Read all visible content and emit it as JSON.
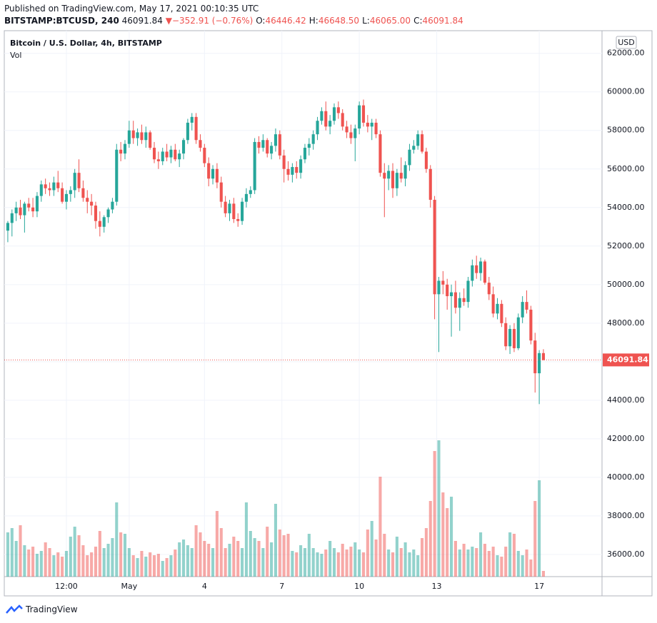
{
  "header": {
    "published": "Published on TradingView.com, May 17, 2021 00:10:35 UTC",
    "symbol": "BITSTAMP:BTCUSD, 240",
    "price": "46091.84",
    "change": "−352.91 (−0.76%)",
    "ohlc": [
      {
        "label": "O:",
        "value": "46446.42"
      },
      {
        "label": "H:",
        "value": "46648.50"
      },
      {
        "label": "L:",
        "value": "46065.00"
      },
      {
        "label": "C:",
        "value": "46091.84"
      }
    ]
  },
  "footer": {
    "brand": "TradingView"
  },
  "chart_data": {
    "type": "candlestick",
    "title": "Bitcoin / U.S. Dollar, 4h, BITSTAMP",
    "volume_label": "Vol",
    "currency": "USD",
    "up_color": "#26a69a",
    "down_color": "#ef5350",
    "grid": true,
    "ylim": [
      34850,
      63100
    ],
    "yticks": [
      {
        "value": 36000,
        "label": "36000.00"
      },
      {
        "value": 38000,
        "label": "38000.00"
      },
      {
        "value": 40000,
        "label": "40000.00"
      },
      {
        "value": 42000,
        "label": "42000.00"
      },
      {
        "value": 44000,
        "label": "44000.00"
      },
      {
        "value": 46000,
        "label": "46000.00"
      },
      {
        "value": 48000,
        "label": "48000.00"
      },
      {
        "value": 50000,
        "label": "50000.00"
      },
      {
        "value": 52000,
        "label": "52000.00"
      },
      {
        "value": 54000,
        "label": "54000.00"
      },
      {
        "value": 56000,
        "label": "56000.00"
      },
      {
        "value": 58000,
        "label": "58000.00"
      },
      {
        "value": 60000,
        "label": "60000.00"
      },
      {
        "value": 62000,
        "label": "62000.00"
      }
    ],
    "xlim": [
      -0.5,
      142
    ],
    "xticks": [
      {
        "value": 14,
        "label": "12:00"
      },
      {
        "value": 29,
        "label": "May"
      },
      {
        "value": 47,
        "label": "4"
      },
      {
        "value": 65.5,
        "label": "7"
      },
      {
        "value": 84,
        "label": "10"
      },
      {
        "value": 102.5,
        "label": "13"
      },
      {
        "value": 127,
        "label": "17"
      }
    ],
    "last_price": {
      "value": 46091.84,
      "label": "46091.84"
    },
    "volume_ylim": [
      0,
      200
    ],
    "candles": [
      [
        52800,
        53300,
        52200,
        53200
      ],
      [
        53200,
        53900,
        52500,
        53700
      ],
      [
        53700,
        54300,
        53300,
        54000
      ],
      [
        54000,
        54400,
        53400,
        53600
      ],
      [
        53600,
        54300,
        52700,
        54200
      ],
      [
        54200,
        54500,
        53800,
        54000
      ],
      [
        54000,
        54500,
        53500,
        53800
      ],
      [
        53800,
        54800,
        53500,
        54600
      ],
      [
        54600,
        55400,
        54300,
        55200
      ],
      [
        55200,
        55500,
        54700,
        55000
      ],
      [
        55000,
        55300,
        54600,
        54900
      ],
      [
        54900,
        55600,
        54600,
        55300
      ],
      [
        55300,
        55900,
        54800,
        55000
      ],
      [
        55000,
        55300,
        54200,
        54300
      ],
      [
        54300,
        54900,
        53900,
        54700
      ],
      [
        54700,
        55100,
        54300,
        54900
      ],
      [
        54900,
        56000,
        54500,
        55800
      ],
      [
        55800,
        56500,
        54800,
        55000
      ],
      [
        55000,
        55400,
        54300,
        54500
      ],
      [
        54500,
        54900,
        53700,
        54300
      ],
      [
        54300,
        54700,
        53600,
        54100
      ],
      [
        54100,
        54300,
        52900,
        53300
      ],
      [
        53300,
        53800,
        52500,
        53000
      ],
      [
        53000,
        53600,
        52700,
        53500
      ],
      [
        53500,
        54000,
        53200,
        53900
      ],
      [
        53900,
        54500,
        53700,
        54300
      ],
      [
        54300,
        57300,
        54100,
        57000
      ],
      [
        57000,
        57400,
        56400,
        56800
      ],
      [
        56800,
        57500,
        56500,
        57300
      ],
      [
        57300,
        58500,
        57100,
        58000
      ],
      [
        58000,
        58500,
        57300,
        57600
      ],
      [
        57600,
        58100,
        57200,
        57900
      ],
      [
        57900,
        58300,
        57300,
        57500
      ],
      [
        57500,
        58200,
        57100,
        57900
      ],
      [
        57900,
        58000,
        57000,
        57100
      ],
      [
        57100,
        57400,
        56300,
        56500
      ],
      [
        56500,
        56900,
        56000,
        56400
      ],
      [
        56400,
        57100,
        56200,
        56900
      ],
      [
        56900,
        57300,
        56400,
        56600
      ],
      [
        56600,
        57200,
        56300,
        57000
      ],
      [
        57000,
        57300,
        56400,
        56500
      ],
      [
        56500,
        57000,
        56100,
        56800
      ],
      [
        56800,
        57600,
        56500,
        57500
      ],
      [
        57500,
        58600,
        57300,
        58400
      ],
      [
        58400,
        58900,
        58000,
        58700
      ],
      [
        58700,
        58900,
        57300,
        57500
      ],
      [
        57500,
        57800,
        56900,
        57100
      ],
      [
        57100,
        57300,
        56100,
        56300
      ],
      [
        56300,
        56600,
        55100,
        55500
      ],
      [
        55500,
        56200,
        55200,
        56000
      ],
      [
        56000,
        56300,
        55000,
        55300
      ],
      [
        55300,
        55600,
        54000,
        54300
      ],
      [
        54300,
        54600,
        53500,
        53700
      ],
      [
        53700,
        54400,
        53300,
        54200
      ],
      [
        54200,
        54500,
        53200,
        53400
      ],
      [
        53400,
        53700,
        53000,
        53300
      ],
      [
        53300,
        54500,
        53100,
        54300
      ],
      [
        54300,
        55000,
        54000,
        54700
      ],
      [
        54700,
        55100,
        54500,
        54900
      ],
      [
        54900,
        57600,
        54700,
        57400
      ],
      [
        57400,
        57700,
        56800,
        57100
      ],
      [
        57100,
        57800,
        56900,
        57500
      ],
      [
        57500,
        57600,
        56600,
        56800
      ],
      [
        56800,
        57400,
        56500,
        57200
      ],
      [
        57200,
        58100,
        56900,
        57800
      ],
      [
        57800,
        58000,
        56500,
        56700
      ],
      [
        56700,
        57000,
        55300,
        56000
      ],
      [
        56000,
        56400,
        55400,
        55700
      ],
      [
        55700,
        56300,
        55300,
        56100
      ],
      [
        56100,
        56400,
        55500,
        55800
      ],
      [
        55800,
        56700,
        55500,
        56500
      ],
      [
        56500,
        57300,
        56300,
        57100
      ],
      [
        57100,
        57600,
        56700,
        57300
      ],
      [
        57300,
        58000,
        57000,
        57800
      ],
      [
        57800,
        58700,
        57500,
        58500
      ],
      [
        58500,
        59200,
        58300,
        59000
      ],
      [
        59000,
        59500,
        58000,
        58200
      ],
      [
        58200,
        58800,
        57800,
        58500
      ],
      [
        58500,
        59400,
        58300,
        59200
      ],
      [
        59200,
        59500,
        58600,
        58900
      ],
      [
        58900,
        59100,
        58000,
        58200
      ],
      [
        58200,
        58500,
        57600,
        57900
      ],
      [
        57900,
        58300,
        57300,
        57600
      ],
      [
        57600,
        58300,
        56400,
        58100
      ],
      [
        58100,
        59500,
        57800,
        59300
      ],
      [
        59300,
        59600,
        58200,
        58400
      ],
      [
        58400,
        58800,
        57900,
        58200
      ],
      [
        58200,
        58600,
        57500,
        58400
      ],
      [
        58400,
        58600,
        57600,
        57800
      ],
      [
        57800,
        58000,
        55600,
        55800
      ],
      [
        55800,
        56300,
        53500,
        55500
      ],
      [
        55500,
        56200,
        54900,
        55900
      ],
      [
        55900,
        56300,
        54500,
        55000
      ],
      [
        55000,
        56000,
        54600,
        55800
      ],
      [
        55800,
        56600,
        55300,
        55500
      ],
      [
        55500,
        56400,
        55100,
        56200
      ],
      [
        56200,
        57300,
        55900,
        57000
      ],
      [
        57000,
        57500,
        56800,
        57200
      ],
      [
        57200,
        58000,
        57000,
        57800
      ],
      [
        57800,
        58000,
        56800,
        56900
      ],
      [
        56900,
        57100,
        55800,
        56000
      ],
      [
        56000,
        56200,
        54000,
        54400
      ],
      [
        54400,
        54600,
        48200,
        49500
      ],
      [
        49500,
        50400,
        46500,
        50200
      ],
      [
        50200,
        50700,
        49500,
        50000
      ],
      [
        50000,
        50300,
        48700,
        49400
      ],
      [
        49400,
        50000,
        47300,
        49600
      ],
      [
        49600,
        50200,
        48500,
        48800
      ],
      [
        48800,
        49600,
        47600,
        49300
      ],
      [
        49300,
        49800,
        48900,
        49100
      ],
      [
        49100,
        50400,
        48800,
        50200
      ],
      [
        50200,
        51300,
        49900,
        51000
      ],
      [
        51000,
        51500,
        50300,
        50600
      ],
      [
        50600,
        51400,
        50200,
        51200
      ],
      [
        51200,
        51300,
        50000,
        50100
      ],
      [
        50100,
        50400,
        49200,
        49500
      ],
      [
        49500,
        49900,
        48300,
        48500
      ],
      [
        48500,
        49300,
        48200,
        49000
      ],
      [
        49000,
        49200,
        47800,
        48000
      ],
      [
        48000,
        48300,
        46600,
        46800
      ],
      [
        46800,
        47900,
        46400,
        47700
      ],
      [
        47700,
        48000,
        46500,
        46700
      ],
      [
        46700,
        48500,
        46600,
        48300
      ],
      [
        48300,
        49400,
        48000,
        49100
      ],
      [
        49100,
        49700,
        48500,
        48700
      ],
      [
        48700,
        48900,
        46900,
        47100
      ],
      [
        47100,
        47500,
        44400,
        45400
      ],
      [
        45400,
        46600,
        43800,
        46446
      ],
      [
        46446.42,
        46648.5,
        46065,
        46091.84
      ]
    ],
    "volumes": [
      62,
      68,
      50,
      72,
      44,
      38,
      42,
      32,
      36,
      48,
      40,
      30,
      34,
      28,
      36,
      56,
      70,
      58,
      44,
      30,
      34,
      42,
      64,
      40,
      46,
      54,
      104,
      62,
      60,
      40,
      30,
      26,
      36,
      28,
      34,
      30,
      32,
      22,
      26,
      30,
      38,
      48,
      52,
      44,
      40,
      72,
      62,
      50,
      46,
      40,
      92,
      68,
      40,
      46,
      56,
      50,
      40,
      104,
      64,
      54,
      50,
      40,
      70,
      48,
      102,
      66,
      58,
      60,
      36,
      34,
      44,
      40,
      60,
      40,
      34,
      32,
      38,
      50,
      40,
      34,
      46,
      38,
      42,
      48,
      38,
      34,
      66,
      78,
      52,
      140,
      60,
      38,
      34,
      56,
      40,
      48,
      34,
      38,
      30,
      54,
      68,
      106,
      176,
      191,
      118,
      96,
      112,
      50,
      38,
      46,
      38,
      42,
      40,
      62,
      46,
      36,
      42,
      30,
      28,
      42,
      62,
      60,
      36,
      30,
      38,
      24,
      106,
      135,
      8
    ]
  }
}
